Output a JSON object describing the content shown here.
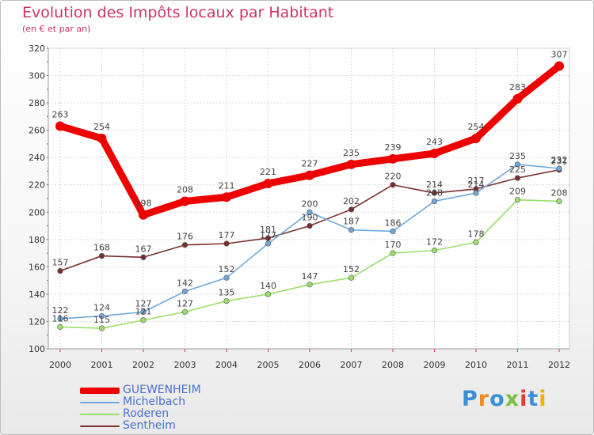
{
  "title": "Evolution des Impôts locaux par Habitant",
  "subtitle": "(en € et par an)",
  "brand": "Proxiti",
  "brand_colors": [
    "#3a8fd8",
    "#f08a24",
    "#3a8fd8",
    "#7bc043",
    "#e53935",
    "#3a8fd8",
    "#f0b400"
  ],
  "chart_data": {
    "type": "line",
    "categories": [
      "2000",
      "2001",
      "2002",
      "2003",
      "2004",
      "2005",
      "2006",
      "2007",
      "2008",
      "2009",
      "2010",
      "2011",
      "2012"
    ],
    "ylim": [
      100,
      320
    ],
    "yticks": [
      100,
      120,
      140,
      160,
      180,
      200,
      220,
      240,
      260,
      280,
      300,
      320
    ],
    "grid": true,
    "legend_position": "bottom-left",
    "series": [
      {
        "name": "GUEWENHEIM",
        "color": "#ee0000",
        "values": [
          263,
          254,
          198,
          208,
          211,
          221,
          227,
          235,
          239,
          243,
          254,
          283,
          307
        ]
      },
      {
        "name": "Michelbach",
        "color": "#6fa8dc",
        "values": [
          122,
          124,
          127,
          142,
          152,
          177,
          200,
          187,
          186,
          208,
          214,
          235,
          232
        ]
      },
      {
        "name": "Roderen",
        "color": "#99e06a",
        "values": [
          116,
          115,
          121,
          127,
          135,
          140,
          147,
          152,
          170,
          172,
          178,
          209,
          208
        ]
      },
      {
        "name": "Sentheim",
        "color": "#7a2f2f",
        "values": [
          157,
          168,
          167,
          176,
          177,
          181,
          190,
          202,
          220,
          214,
          217,
          225,
          231
        ]
      }
    ]
  }
}
